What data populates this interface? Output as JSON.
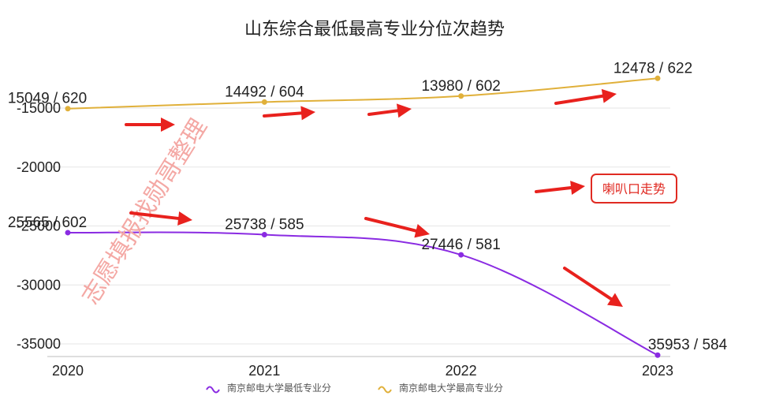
{
  "colors": {
    "min_series": "#8a2be2",
    "max_series": "#e0b03a",
    "grid": "#e6e6e6",
    "arrow": "#e8211d",
    "note_border": "#e02a22",
    "watermark": "#f4a8a4"
  },
  "watermark_text": "志愿填报找勋哥整理",
  "annotation_note": "喇叭口走势",
  "icons": [
    "arrow-right-icon",
    "arrow-down-right-icon",
    "legend-line-icon"
  ],
  "chart_data": {
    "type": "line",
    "title": "山东综合最低最高专业分位次趋势",
    "xlabel": "",
    "ylabel": "",
    "x": [
      "2020",
      "2021",
      "2022",
      "2023"
    ],
    "y_ticks": [
      "-15000",
      "-20000",
      "-25000",
      "-30000",
      "-35000"
    ],
    "y_tick_values": [
      -15000,
      -20000,
      -25000,
      -30000,
      -35000
    ],
    "ylim": [
      -36000,
      -12000
    ],
    "grid": true,
    "legend_position": "bottom",
    "series": [
      {
        "name": "南京邮电大学最低专业分",
        "color": "#8a2be2",
        "values": [
          -25565,
          -25738,
          -27446,
          -35953
        ],
        "labels": [
          "25565 / 602",
          "25738 / 585",
          "27446 / 581",
          "35953 / 584"
        ]
      },
      {
        "name": "南京邮电大学最高专业分",
        "color": "#e0b03a",
        "values": [
          -15049,
          -14492,
          -13980,
          -12478
        ],
        "labels": [
          "15049 / 620",
          "14492 / 604",
          "13980 / 602",
          "12478 / 622"
        ]
      }
    ]
  }
}
